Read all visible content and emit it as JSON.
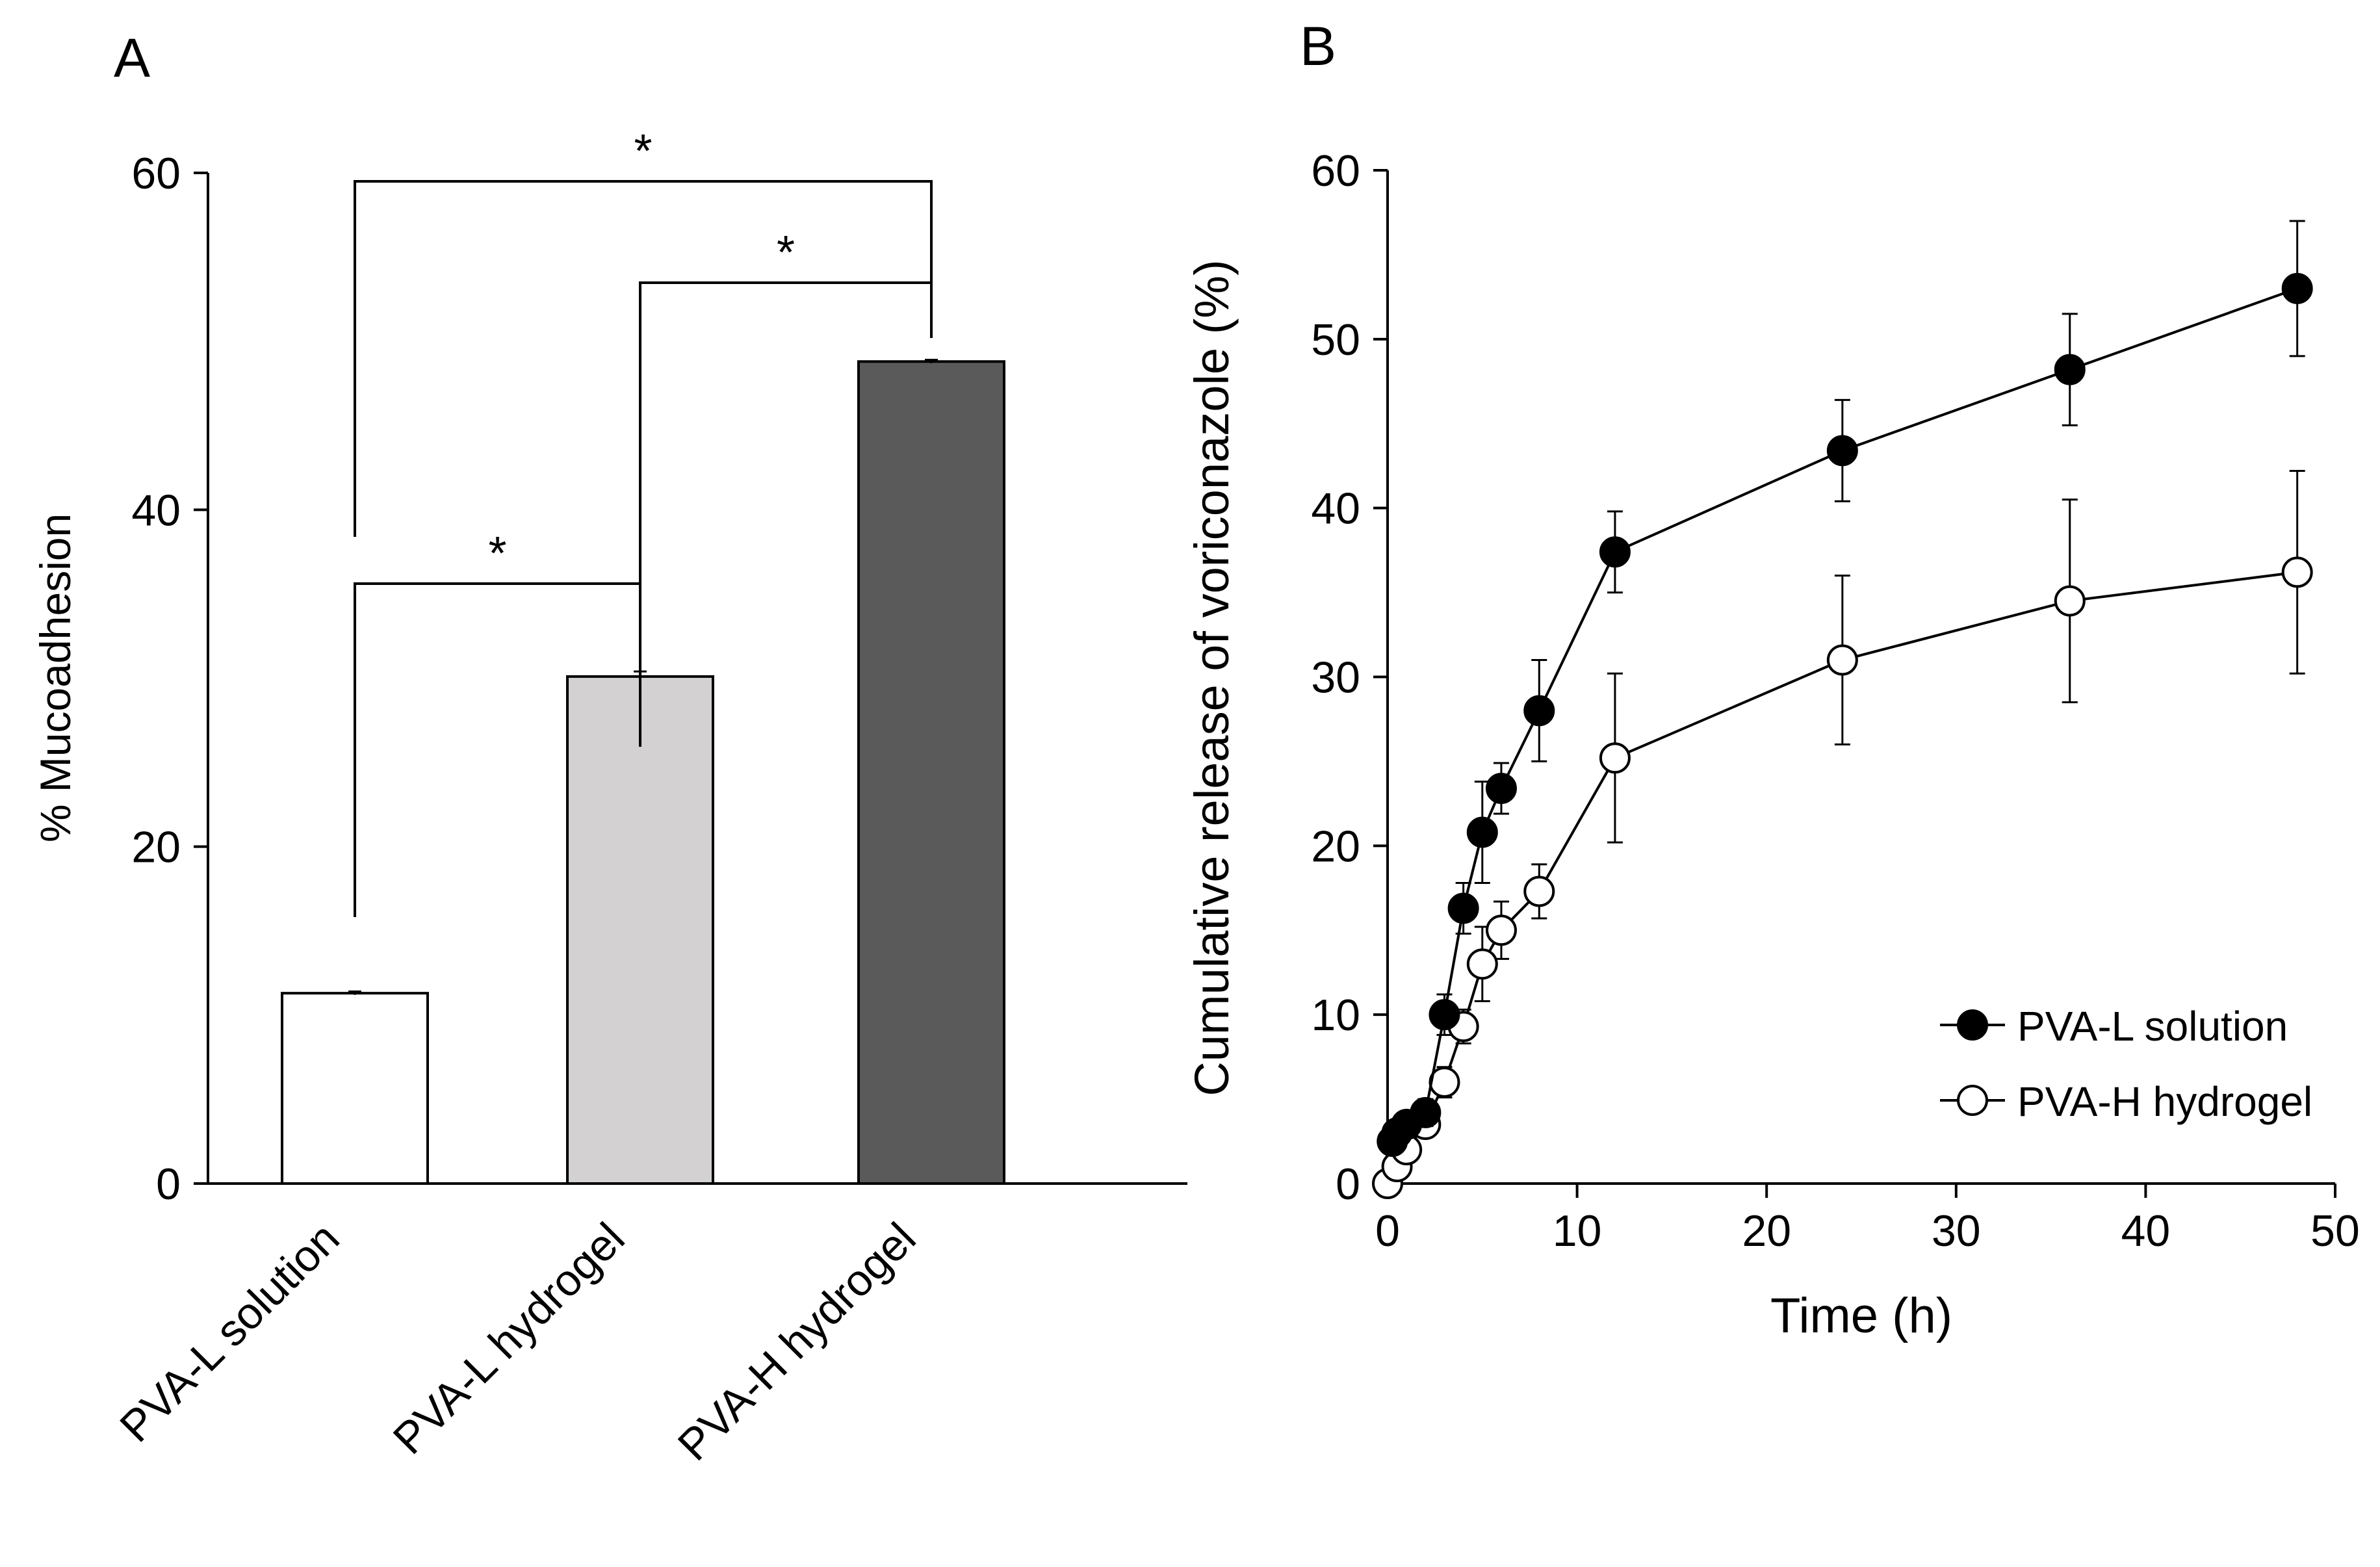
{
  "chart_data": [
    {
      "panel": "A",
      "type": "bar",
      "title": "",
      "ylabel": "% Mucoadhesion",
      "xlabel": "",
      "ylim": [
        0,
        60
      ],
      "yticks": [
        0,
        20,
        40,
        60
      ],
      "categories": [
        "PVA-L solution",
        "PVA-L hydrogel",
        "PVA-H hydrogel"
      ],
      "values": [
        11.3,
        30.1,
        48.8
      ],
      "errors": [
        0.1,
        0.3,
        0.1
      ],
      "colors": [
        "#ffffff",
        "#d4d1d2",
        "#5a5a5a"
      ],
      "significance": [
        {
          "from": 0,
          "to": 1,
          "label": "*"
        },
        {
          "from": 1,
          "to": 2,
          "label": "*"
        },
        {
          "from": 0,
          "to": 2,
          "label": "*"
        }
      ],
      "grid": false
    },
    {
      "panel": "B",
      "type": "line",
      "title": "",
      "xlabel": "Time (h)",
      "ylabel": "Cumulative release of voriconazole (%)",
      "xlim": [
        0,
        50
      ],
      "ylim": [
        0,
        60
      ],
      "xticks": [
        0,
        10,
        20,
        30,
        40,
        50
      ],
      "yticks": [
        0,
        10,
        20,
        30,
        40,
        50,
        60
      ],
      "legend_position": "bottom-right",
      "grid": false,
      "series": [
        {
          "name": "PVA-L solution",
          "marker": "filled-circle",
          "color": "#000000",
          "x": [
            0.25,
            0.5,
            1,
            2,
            3,
            4,
            5,
            6,
            8,
            12,
            24,
            36,
            48
          ],
          "y": [
            2.5,
            3.0,
            3.5,
            4.2,
            10.0,
            16.3,
            20.8,
            23.4,
            28.0,
            37.4,
            43.4,
            48.2,
            53.0
          ],
          "error": [
            0.5,
            0.6,
            0.6,
            0.8,
            1.2,
            1.5,
            3.0,
            1.5,
            3.0,
            2.4,
            3.0,
            3.3,
            4.0
          ]
        },
        {
          "name": "PVA-H hydrogel",
          "marker": "open-circle",
          "color": "#000000",
          "x": [
            0,
            0.5,
            1,
            2,
            3,
            4,
            5,
            6,
            8,
            12,
            24,
            36,
            48
          ],
          "y": [
            0,
            1.0,
            2.0,
            3.5,
            6.0,
            9.3,
            13.0,
            15.0,
            17.3,
            25.2,
            31.0,
            34.5,
            36.2
          ],
          "error": [
            0.2,
            0.3,
            0.5,
            0.6,
            0.9,
            1.0,
            2.2,
            1.7,
            1.6,
            5.0,
            5.0,
            6.0,
            6.0
          ]
        }
      ]
    }
  ],
  "panels": {
    "a_label": "A",
    "b_label": "B"
  }
}
